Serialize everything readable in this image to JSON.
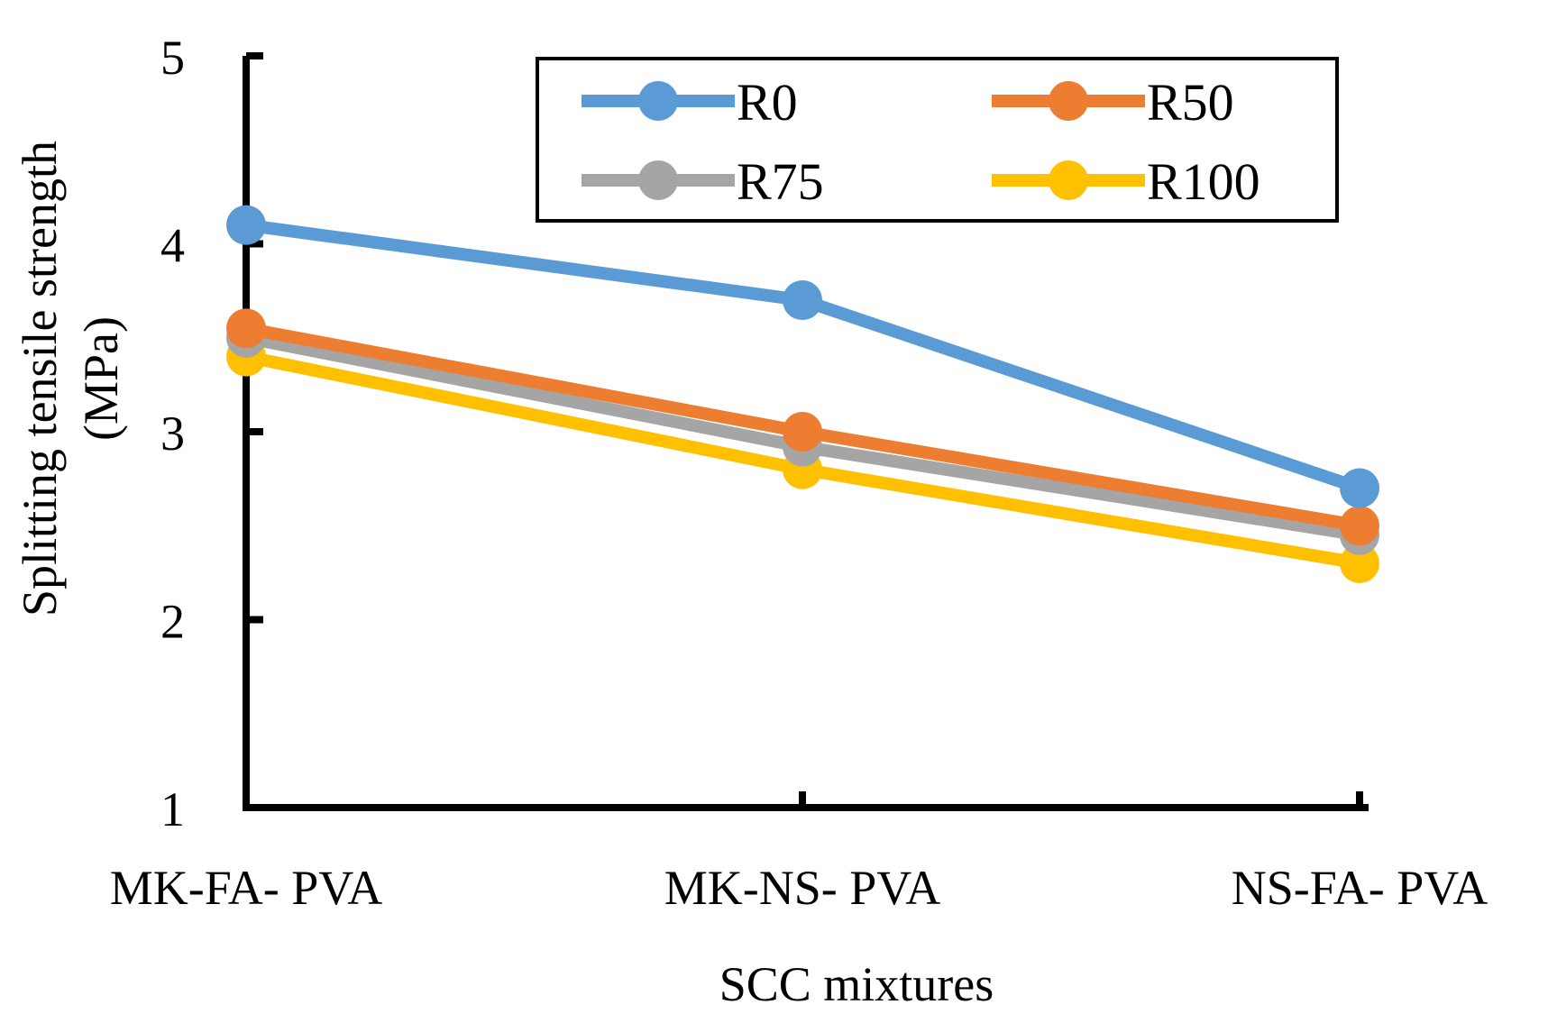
{
  "chart_data": {
    "type": "line",
    "title": "",
    "xlabel": "SCC mixtures",
    "ylabel_lines": [
      "Splitting tensile strength",
      "(MPa)"
    ],
    "categories": [
      "MK-FA- PVA",
      "MK-NS- PVA",
      "NS-FA- PVA"
    ],
    "ylim": [
      1,
      5
    ],
    "yticks": [
      "1",
      "2",
      "3",
      "4",
      "5"
    ],
    "grid": false,
    "legend_position": "top-right",
    "series": [
      {
        "name": "R0",
        "color": "#5B9BD5",
        "values": [
          4.1,
          3.7,
          2.7
        ]
      },
      {
        "name": "R50",
        "color": "#ED7D31",
        "values": [
          3.55,
          3.0,
          2.5
        ]
      },
      {
        "name": "R75",
        "color": "#A5A5A5",
        "values": [
          3.5,
          2.92,
          2.45
        ]
      },
      {
        "name": "R100",
        "color": "#FFC000",
        "values": [
          3.4,
          2.8,
          2.3
        ]
      }
    ]
  }
}
